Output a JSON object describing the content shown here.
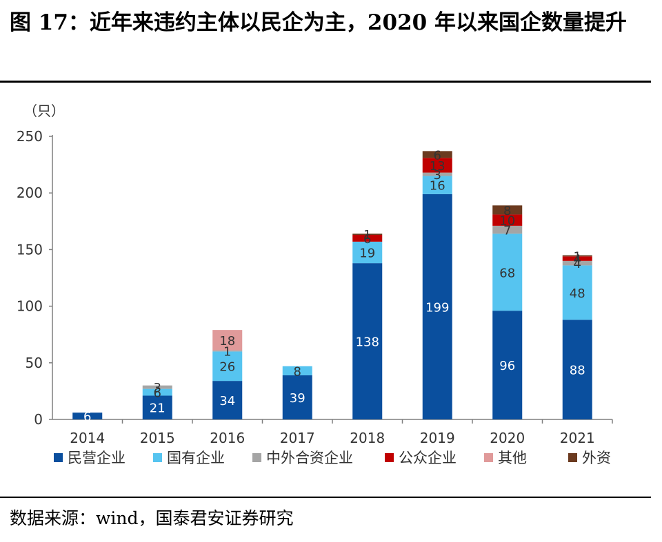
{
  "title": "图 17：近年来违约主体以民企为主，2020 年以来国企数量提升",
  "source": "数据来源：wind，国泰君安证券研究",
  "chart_data": {
    "type": "bar",
    "stacked": true,
    "ylabel": "（只）",
    "ylim": [
      0,
      250
    ],
    "yticks": [
      0,
      50,
      100,
      150,
      200,
      250
    ],
    "grid": false,
    "legend_position": "bottom",
    "categories": [
      "2014",
      "2015",
      "2016",
      "2017",
      "2018",
      "2019",
      "2020",
      "2021"
    ],
    "series": [
      {
        "name": "民营企业",
        "color": "#0a4f9e",
        "label_color": "#ffffff",
        "values": [
          6,
          21,
          34,
          39,
          138,
          199,
          96,
          88
        ]
      },
      {
        "name": "国有企业",
        "color": "#56c4f0",
        "label_color": "#333333",
        "values": [
          0,
          6,
          26,
          8,
          19,
          16,
          68,
          48
        ]
      },
      {
        "name": "中外合资企业",
        "color": "#a5a5a5",
        "label_color": "#333333",
        "values": [
          0,
          3,
          1,
          0,
          0,
          3,
          7,
          4
        ]
      },
      {
        "name": "公众企业",
        "color": "#c00000",
        "label_color": "#333333",
        "values": [
          0,
          0,
          0,
          0,
          6,
          13,
          10,
          4
        ]
      },
      {
        "name": "其他",
        "color": "#e09a9a",
        "label_color": "#333333",
        "values": [
          0,
          0,
          18,
          0,
          0,
          0,
          0,
          0
        ]
      },
      {
        "name": "外资",
        "color": "#6b3a1f",
        "label_color": "#333333",
        "values": [
          0,
          0,
          0,
          0,
          1,
          6,
          8,
          1
        ]
      }
    ]
  }
}
